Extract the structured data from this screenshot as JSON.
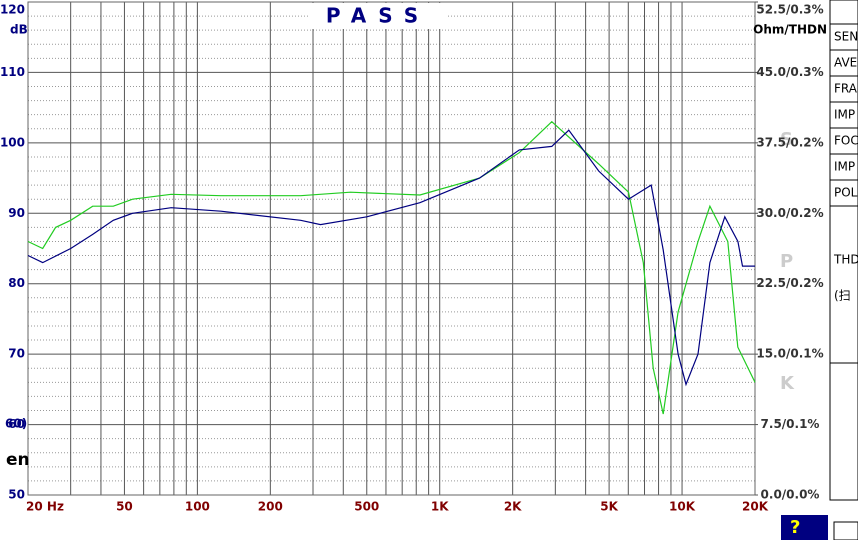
{
  "chart_data": {
    "type": "line",
    "title": "PASS",
    "ylabel": "dB",
    "y2label": "Ohm/THDN",
    "xscale": "log",
    "xlim": [
      20,
      20000
    ],
    "ylim": [
      50,
      120
    ],
    "y2lim": [
      0,
      52.5
    ],
    "xticks": [
      {
        "value": 20,
        "label": "20 Hz"
      },
      50,
      100,
      200,
      500,
      {
        "value": 1000,
        "label": "1K"
      },
      {
        "value": 2000,
        "label": "2K"
      },
      {
        "value": 5000,
        "label": "5K"
      },
      {
        "value": 10000,
        "label": "10K"
      },
      {
        "value": 20000,
        "label": "20K"
      }
    ],
    "xminorticks": [
      30,
      40,
      60,
      70,
      80,
      90,
      300,
      400,
      600,
      700,
      800,
      900,
      3000,
      4000,
      6000,
      7000,
      8000,
      9000
    ],
    "yticks": [
      50,
      60,
      70,
      80,
      90,
      100,
      110,
      120
    ],
    "yminorticks": [
      52,
      54,
      56,
      58,
      62,
      64,
      66,
      68,
      72,
      74,
      76,
      78,
      82,
      84,
      86,
      88,
      92,
      94,
      96,
      98,
      102,
      104,
      106,
      108,
      112,
      114,
      116,
      118
    ],
    "y2ticks": [
      {
        "value": 0,
        "label": "0.0/0.0%"
      },
      {
        "value": 7.5,
        "label": "7.5/0.1%"
      },
      {
        "value": 15,
        "label": "15.0/0.1%"
      },
      {
        "value": 22.5,
        "label": "22.5/0.2%"
      },
      {
        "value": 30,
        "label": "30.0/0.2%"
      },
      {
        "value": 37.5,
        "label": "37.5/0.2%"
      },
      {
        "value": 45,
        "label": "45.0/0.3%"
      },
      {
        "value": 52.5,
        "label": "52.5/0.3%"
      }
    ],
    "grid": true,
    "series": [
      {
        "color": "#22cc22",
        "x": [
          20,
          23,
          26,
          30,
          37,
          45,
          54,
          78,
          125,
          267,
          428,
          828,
          1460,
          2130,
          2900,
          4530,
          6010,
          6920,
          7600,
          8360,
          9630,
          11640,
          13030,
          15450,
          16980,
          20000
        ],
        "values": [
          86,
          85,
          88,
          89,
          91,
          91,
          92,
          92.7,
          92.5,
          92.5,
          93,
          92.6,
          95,
          98.6,
          103,
          97,
          93,
          83,
          68,
          61.5,
          76,
          86,
          91,
          86,
          71,
          66
        ]
      },
      {
        "color": "#000080",
        "x": [
          20,
          23,
          30,
          37,
          45,
          54,
          78,
          125,
          267,
          322,
          500,
          828,
          1460,
          2130,
          2900,
          3410,
          4530,
          6010,
          7460,
          8360,
          9630,
          10380,
          11640,
          13030,
          15010,
          17000,
          17760,
          20000
        ],
        "values": [
          84,
          83,
          85,
          87,
          89,
          90,
          90.8,
          90.3,
          89,
          88.4,
          89.5,
          91.5,
          95,
          99,
          99.5,
          101.8,
          96,
          92,
          94,
          84.8,
          70,
          65.7,
          70,
          83,
          89.5,
          86,
          82.5,
          82.5
        ]
      }
    ],
    "annotations": [
      "S",
      "P",
      "K"
    ]
  },
  "overlay": {
    "left_text": "en",
    "left_tick_ghost": "60)"
  },
  "panel": {
    "labels": [
      "SEN",
      "AVE",
      "FRA",
      "IMP",
      "FOC",
      "IMP",
      "POL"
    ],
    "thd": "THD",
    "sweep": "(扫"
  },
  "footer": {
    "help": "?"
  }
}
